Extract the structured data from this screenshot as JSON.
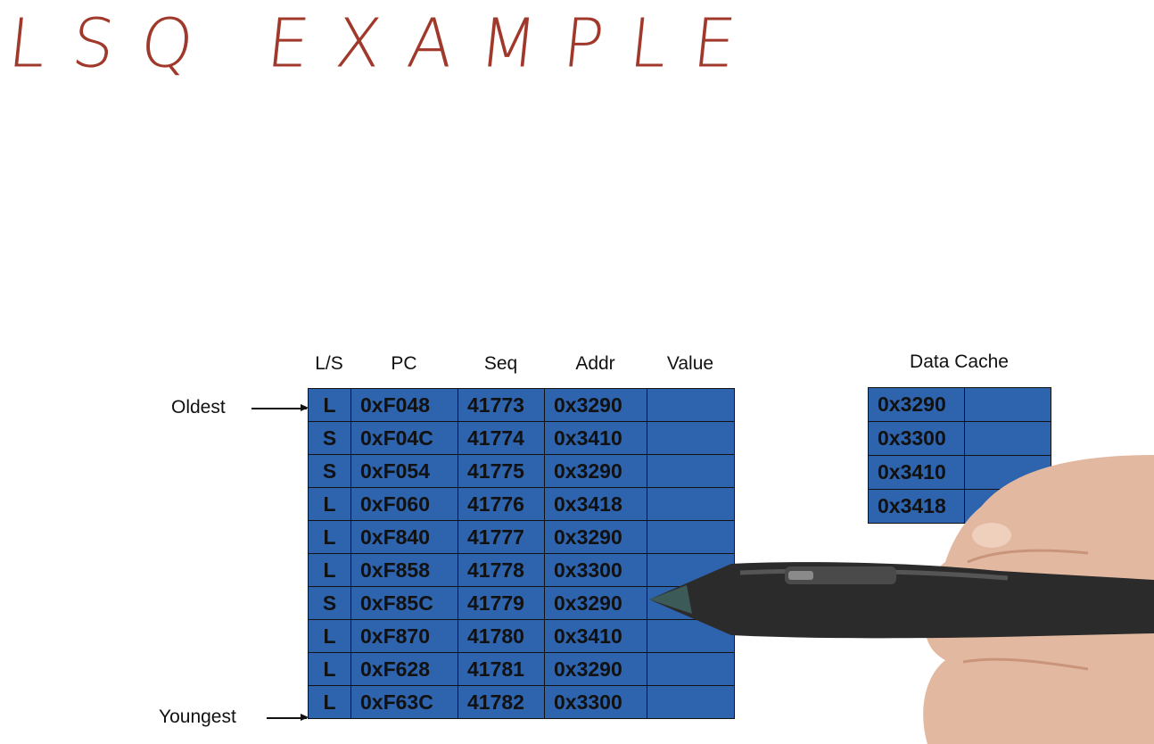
{
  "title": "LSQ EXAMPLE",
  "colors": {
    "title": "#a0392b",
    "cell_fill": "#2e63ad",
    "border": "#111111"
  },
  "lsq": {
    "columns": [
      "L/S",
      "PC",
      "Seq",
      "Addr",
      "Value"
    ],
    "rows": [
      {
        "ls": "L",
        "pc": "0xF048",
        "seq": "41773",
        "addr": "0x3290",
        "value": ""
      },
      {
        "ls": "S",
        "pc": "0xF04C",
        "seq": "41774",
        "addr": "0x3410",
        "value": ""
      },
      {
        "ls": "S",
        "pc": "0xF054",
        "seq": "41775",
        "addr": "0x3290",
        "value": ""
      },
      {
        "ls": "L",
        "pc": "0xF060",
        "seq": "41776",
        "addr": "0x3418",
        "value": ""
      },
      {
        "ls": "L",
        "pc": "0xF840",
        "seq": "41777",
        "addr": "0x3290",
        "value": ""
      },
      {
        "ls": "L",
        "pc": "0xF858",
        "seq": "41778",
        "addr": "0x3300",
        "value": ""
      },
      {
        "ls": "S",
        "pc": "0xF85C",
        "seq": "41779",
        "addr": "0x3290",
        "value": ""
      },
      {
        "ls": "L",
        "pc": "0xF870",
        "seq": "41780",
        "addr": "0x3410",
        "value": ""
      },
      {
        "ls": "L",
        "pc": "0xF628",
        "seq": "41781",
        "addr": "0x3290",
        "value": ""
      },
      {
        "ls": "L",
        "pc": "0xF63C",
        "seq": "41782",
        "addr": "0x3300",
        "value": ""
      }
    ],
    "oldest_label": "Oldest",
    "youngest_label": "Youngest"
  },
  "cache": {
    "title": "Data Cache",
    "rows": [
      {
        "addr": "0x3290",
        "value": ""
      },
      {
        "addr": "0x3300",
        "value": ""
      },
      {
        "addr": "0x3410",
        "value": ""
      },
      {
        "addr": "0x3418",
        "value": ""
      }
    ]
  }
}
